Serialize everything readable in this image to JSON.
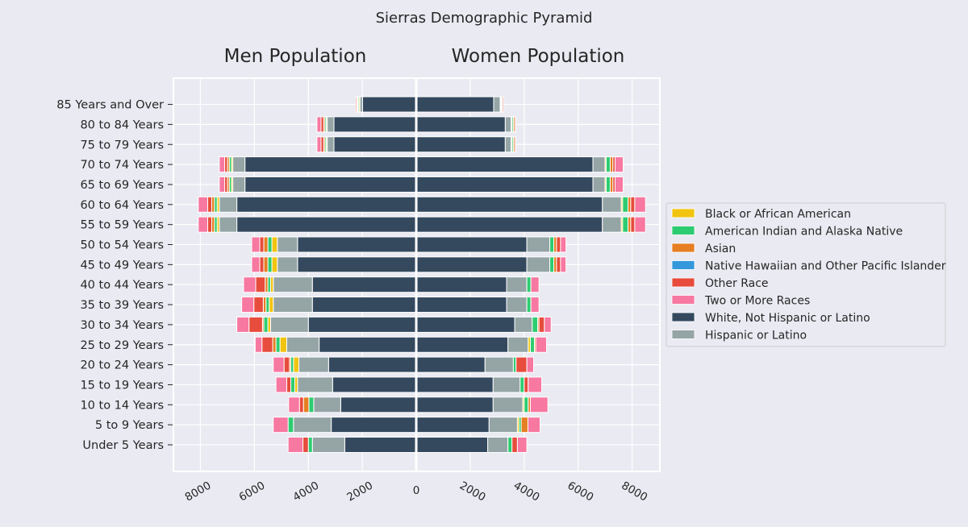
{
  "chart_data": {
    "type": "bar",
    "title": "Sierras Demographic Pyramid",
    "panels": [
      {
        "side": "left",
        "title": "Men Population"
      },
      {
        "side": "right",
        "title": "Women Population"
      }
    ],
    "categories": [
      "Under 5 Years",
      "5 to 9 Years",
      "10 to 14 Years",
      "15 to 19 Years",
      "20 to 24 Years",
      "25 to 29 Years",
      "30 to 34 Years",
      "35 to 39 Years",
      "40 to 44 Years",
      "45 to 49 Years",
      "50 to 54 Years",
      "55 to 59 Years",
      "60 to 64 Years",
      "65 to 69 Years",
      "70 to 74 Years",
      "75 to 79 Years",
      "80 to 84 Years",
      "85 Years and Over"
    ],
    "stack_order": [
      "White, Not Hispanic or Latino",
      "Hispanic or Latino",
      "Black or African American",
      "American Indian and Alaska Native",
      "Asian",
      "Native Hawaiian and Other Pacific Islander",
      "Other Race",
      "Two or More Races"
    ],
    "series": [
      {
        "name": "Black or African American",
        "color": "#f1c40f",
        "men": [
          0,
          0,
          0,
          100,
          200,
          250,
          100,
          150,
          100,
          200,
          200,
          80,
          80,
          50,
          50,
          30,
          30,
          40
        ],
        "women": [
          0,
          60,
          50,
          0,
          0,
          80,
          0,
          0,
          0,
          0,
          0,
          50,
          50,
          40,
          40,
          30,
          30,
          20
        ]
      },
      {
        "name": "American Indian and Alaska Native",
        "color": "#2ecc71",
        "men": [
          150,
          200,
          180,
          150,
          100,
          150,
          150,
          120,
          100,
          150,
          150,
          100,
          100,
          80,
          80,
          50,
          50,
          40
        ],
        "women": [
          150,
          80,
          150,
          150,
          100,
          150,
          200,
          150,
          150,
          150,
          150,
          200,
          200,
          150,
          150,
          50,
          50,
          30
        ]
      },
      {
        "name": "Asian",
        "color": "#e67e22",
        "men": [
          0,
          0,
          200,
          0,
          50,
          120,
          50,
          100,
          100,
          150,
          150,
          100,
          100,
          70,
          70,
          50,
          50,
          30
        ],
        "women": [
          0,
          250,
          80,
          0,
          0,
          50,
          50,
          0,
          0,
          100,
          100,
          100,
          100,
          100,
          100,
          50,
          50,
          30
        ]
      },
      {
        "name": "Native Hawaiian and Other Pacific Islander",
        "color": "#3498db",
        "men": [
          0,
          0,
          0,
          0,
          0,
          0,
          0,
          0,
          0,
          0,
          0,
          0,
          0,
          0,
          0,
          0,
          0,
          0
        ],
        "women": [
          0,
          0,
          0,
          0,
          0,
          0,
          0,
          0,
          0,
          0,
          0,
          0,
          0,
          0,
          0,
          0,
          0,
          0
        ]
      },
      {
        "name": "Other Race",
        "color": "#e74c3c",
        "men": [
          200,
          0,
          150,
          150,
          200,
          400,
          500,
          350,
          350,
          150,
          150,
          150,
          150,
          100,
          100,
          100,
          100,
          40
        ],
        "women": [
          200,
          0,
          0,
          150,
          400,
          0,
          200,
          0,
          0,
          150,
          150,
          150,
          150,
          80,
          80,
          40,
          40,
          40
        ]
      },
      {
        "name": "Two or More Races",
        "color": "#f778a1",
        "men": [
          550,
          550,
          400,
          400,
          400,
          250,
          450,
          450,
          450,
          300,
          300,
          350,
          350,
          200,
          200,
          150,
          150,
          0
        ],
        "women": [
          350,
          450,
          650,
          500,
          250,
          400,
          250,
          300,
          300,
          200,
          200,
          400,
          400,
          300,
          300,
          0,
          0,
          0
        ]
      },
      {
        "name": "White, Not Hispanic or Latino",
        "color": "#34495e",
        "men": [
          2650,
          3150,
          2800,
          3100,
          3250,
          3600,
          4000,
          3850,
          3850,
          4400,
          4400,
          6650,
          6650,
          6350,
          6350,
          3050,
          3050,
          1990
        ],
        "women": [
          2650,
          2700,
          2850,
          2850,
          2550,
          3400,
          3650,
          3350,
          3350,
          4100,
          4100,
          6900,
          6900,
          6550,
          6550,
          3300,
          3300,
          2870
        ]
      },
      {
        "name": "Hispanic or Latino",
        "color": "#95a5a6",
        "men": [
          1200,
          1400,
          1000,
          1300,
          1100,
          1200,
          1400,
          1450,
          1450,
          750,
          750,
          650,
          650,
          450,
          450,
          250,
          250,
          100
        ],
        "women": [
          750,
          1050,
          1100,
          1000,
          1050,
          750,
          650,
          750,
          750,
          850,
          850,
          700,
          700,
          450,
          450,
          220,
          220,
          240
        ]
      }
    ],
    "x_ticks": [
      "8000",
      "6000",
      "4000",
      "2000",
      "0",
      "2000",
      "4000",
      "6000",
      "8000"
    ],
    "xlim": [
      -9000,
      9000
    ],
    "grid": true,
    "legend_position": "right"
  }
}
